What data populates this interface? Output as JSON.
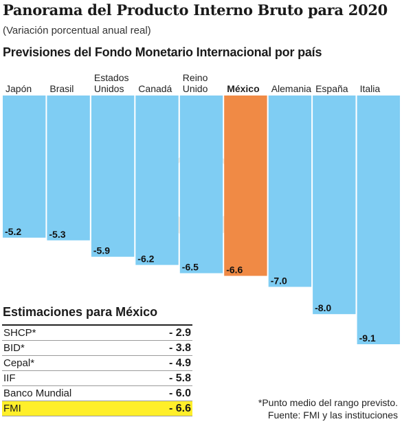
{
  "header": {
    "title": "Panorama del Producto Interno Bruto para 2020",
    "subtitle": "(Variación porcentual anual real)",
    "chart_heading": "Previsiones del Fondo Monetario Internacional por país"
  },
  "chart_data": {
    "type": "bar",
    "orientation": "vertical",
    "baseline": "top",
    "categories": [
      "Japón",
      "Brasil",
      "Estados Unidos",
      "Canadá",
      "Reino Unido",
      "México",
      "Alemania",
      "España",
      "Italia"
    ],
    "category_label_lines": [
      [
        "Japón"
      ],
      [
        "Brasil"
      ],
      [
        "Estados",
        "Unidos"
      ],
      [
        "Canadá"
      ],
      [
        "Reino",
        "Unido"
      ],
      [
        "México"
      ],
      [
        "Alemania"
      ],
      [
        "España"
      ],
      [
        "Italia"
      ]
    ],
    "values": [
      -5.2,
      -5.3,
      -5.9,
      -6.2,
      -6.5,
      -6.6,
      -7.0,
      -8.0,
      -9.1
    ],
    "value_labels": [
      "-5.2",
      "-5.3",
      "-5.9",
      "-6.2",
      "-6.5",
      "-6.6",
      "-7.0",
      "-8.0",
      "-9.1"
    ],
    "highlight": "México",
    "colors": {
      "bar": "#7fcdf3",
      "highlight": "#f08a45"
    },
    "ylim": [
      -9.1,
      0
    ],
    "grid": false,
    "legend": "none"
  },
  "estimates": {
    "title": "Estimaciones para México",
    "rows": [
      {
        "label": "SHCP*",
        "value": "- 2.9"
      },
      {
        "label": "BID*",
        "value": "- 3.8"
      },
      {
        "label": "Cepal*",
        "value": "- 4.9"
      },
      {
        "label": "IIF",
        "value": "- 5.8"
      },
      {
        "label": "Banco Mundial",
        "value": "- 6.0"
      },
      {
        "label": "FMI",
        "value": "- 6.6",
        "highlight": true
      }
    ],
    "highlight_color": "#ffef2a"
  },
  "notes": {
    "line1": "*Punto medio del rango previsto.",
    "line2": "Fuente: FMI y las instituciones"
  }
}
